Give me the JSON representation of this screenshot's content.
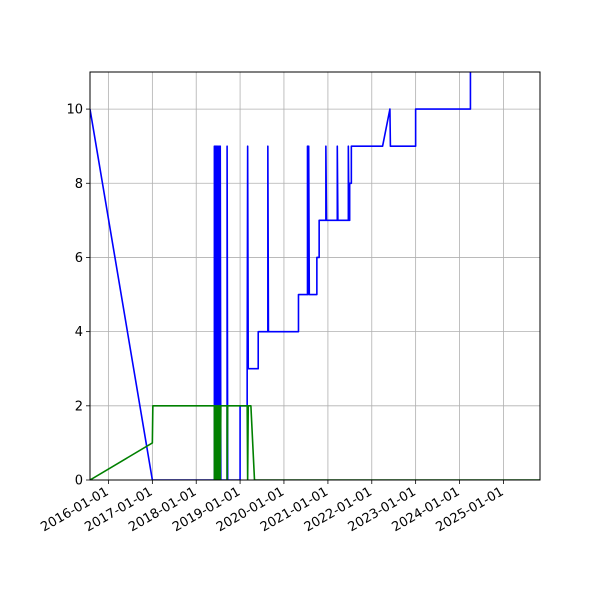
{
  "chart_data": {
    "type": "line",
    "title": "",
    "xlabel": "",
    "ylabel": "",
    "x_scale": "date",
    "xlim": [
      "2015-08-01",
      "2025-11-01"
    ],
    "ylim": [
      0,
      11
    ],
    "grid": true,
    "legend": "none",
    "x_ticks": [
      "2016-01-01",
      "2017-01-01",
      "2018-01-01",
      "2019-01-01",
      "2020-01-01",
      "2021-01-01",
      "2022-01-01",
      "2023-01-01",
      "2024-01-01",
      "2025-01-01"
    ],
    "y_ticks": [
      0,
      2,
      4,
      6,
      8,
      10
    ],
    "series": [
      {
        "color": "#0000ff",
        "points": [
          [
            "2015-08-01",
            10
          ],
          [
            "2017-01-01",
            0
          ],
          [
            "2018-06-01",
            0
          ],
          [
            "2018-06-01",
            9
          ],
          [
            "2018-06-05",
            0
          ],
          [
            "2018-06-10",
            9
          ],
          [
            "2018-06-15",
            0
          ],
          [
            "2018-06-20",
            9
          ],
          [
            "2018-06-25",
            0
          ],
          [
            "2018-06-30",
            9
          ],
          [
            "2018-07-05",
            0
          ],
          [
            "2018-07-10",
            9
          ],
          [
            "2018-07-15",
            0
          ],
          [
            "2018-07-20",
            9
          ],
          [
            "2018-07-25",
            0
          ],
          [
            "2018-09-15",
            0
          ],
          [
            "2018-09-15",
            9
          ],
          [
            "2018-09-20",
            0
          ],
          [
            "2018-10-20",
            0
          ],
          [
            "2019-01-01",
            0
          ],
          [
            "2019-01-01",
            2
          ],
          [
            "2019-03-01",
            2
          ],
          [
            "2019-03-01",
            3
          ],
          [
            "2019-03-05",
            9
          ],
          [
            "2019-03-10",
            3
          ],
          [
            "2019-06-01",
            3
          ],
          [
            "2019-06-01",
            4
          ],
          [
            "2019-08-20",
            4
          ],
          [
            "2019-08-20",
            9
          ],
          [
            "2019-08-25",
            4
          ],
          [
            "2020-05-01",
            4
          ],
          [
            "2020-05-01",
            5
          ],
          [
            "2020-07-15",
            5
          ],
          [
            "2020-07-15",
            9
          ],
          [
            "2020-07-20",
            5
          ],
          [
            "2020-07-25",
            9
          ],
          [
            "2020-07-30",
            5
          ],
          [
            "2020-10-01",
            5
          ],
          [
            "2020-10-01",
            6
          ],
          [
            "2020-10-20",
            6
          ],
          [
            "2020-10-20",
            7
          ],
          [
            "2020-12-15",
            7
          ],
          [
            "2020-12-15",
            9
          ],
          [
            "2020-12-20",
            7
          ],
          [
            "2021-03-20",
            7
          ],
          [
            "2021-03-20",
            9
          ],
          [
            "2021-03-25",
            7
          ],
          [
            "2021-06-20",
            7
          ],
          [
            "2021-06-20",
            9
          ],
          [
            "2021-06-25",
            7
          ],
          [
            "2021-07-01",
            7
          ],
          [
            "2021-07-01",
            8
          ],
          [
            "2021-07-15",
            8
          ],
          [
            "2021-07-15",
            9
          ],
          [
            "2022-04-01",
            9
          ],
          [
            "2022-06-01",
            10
          ],
          [
            "2022-06-05",
            9
          ],
          [
            "2023-01-01",
            9
          ],
          [
            "2023-01-01",
            10
          ],
          [
            "2024-04-01",
            10
          ],
          [
            "2024-04-01",
            11
          ]
        ]
      },
      {
        "color": "#008000",
        "points": [
          [
            "2015-08-01",
            0
          ],
          [
            "2017-01-01",
            1
          ],
          [
            "2017-01-05",
            2
          ],
          [
            "2018-06-01",
            2
          ],
          [
            "2018-06-01",
            0
          ],
          [
            "2018-06-05",
            2
          ],
          [
            "2018-06-10",
            0
          ],
          [
            "2018-06-15",
            2
          ],
          [
            "2018-06-20",
            0
          ],
          [
            "2018-06-25",
            2
          ],
          [
            "2018-06-30",
            0
          ],
          [
            "2018-07-05",
            2
          ],
          [
            "2018-07-10",
            0
          ],
          [
            "2018-07-15",
            2
          ],
          [
            "2018-07-20",
            0
          ],
          [
            "2018-07-25",
            2
          ],
          [
            "2018-09-15",
            2
          ],
          [
            "2018-09-15",
            0
          ],
          [
            "2018-09-20",
            2
          ],
          [
            "2019-03-01",
            2
          ],
          [
            "2019-03-05",
            0
          ],
          [
            "2019-03-10",
            2
          ],
          [
            "2019-04-01",
            2
          ],
          [
            "2019-05-01",
            0
          ],
          [
            "2025-11-01",
            0
          ]
        ]
      }
    ]
  }
}
